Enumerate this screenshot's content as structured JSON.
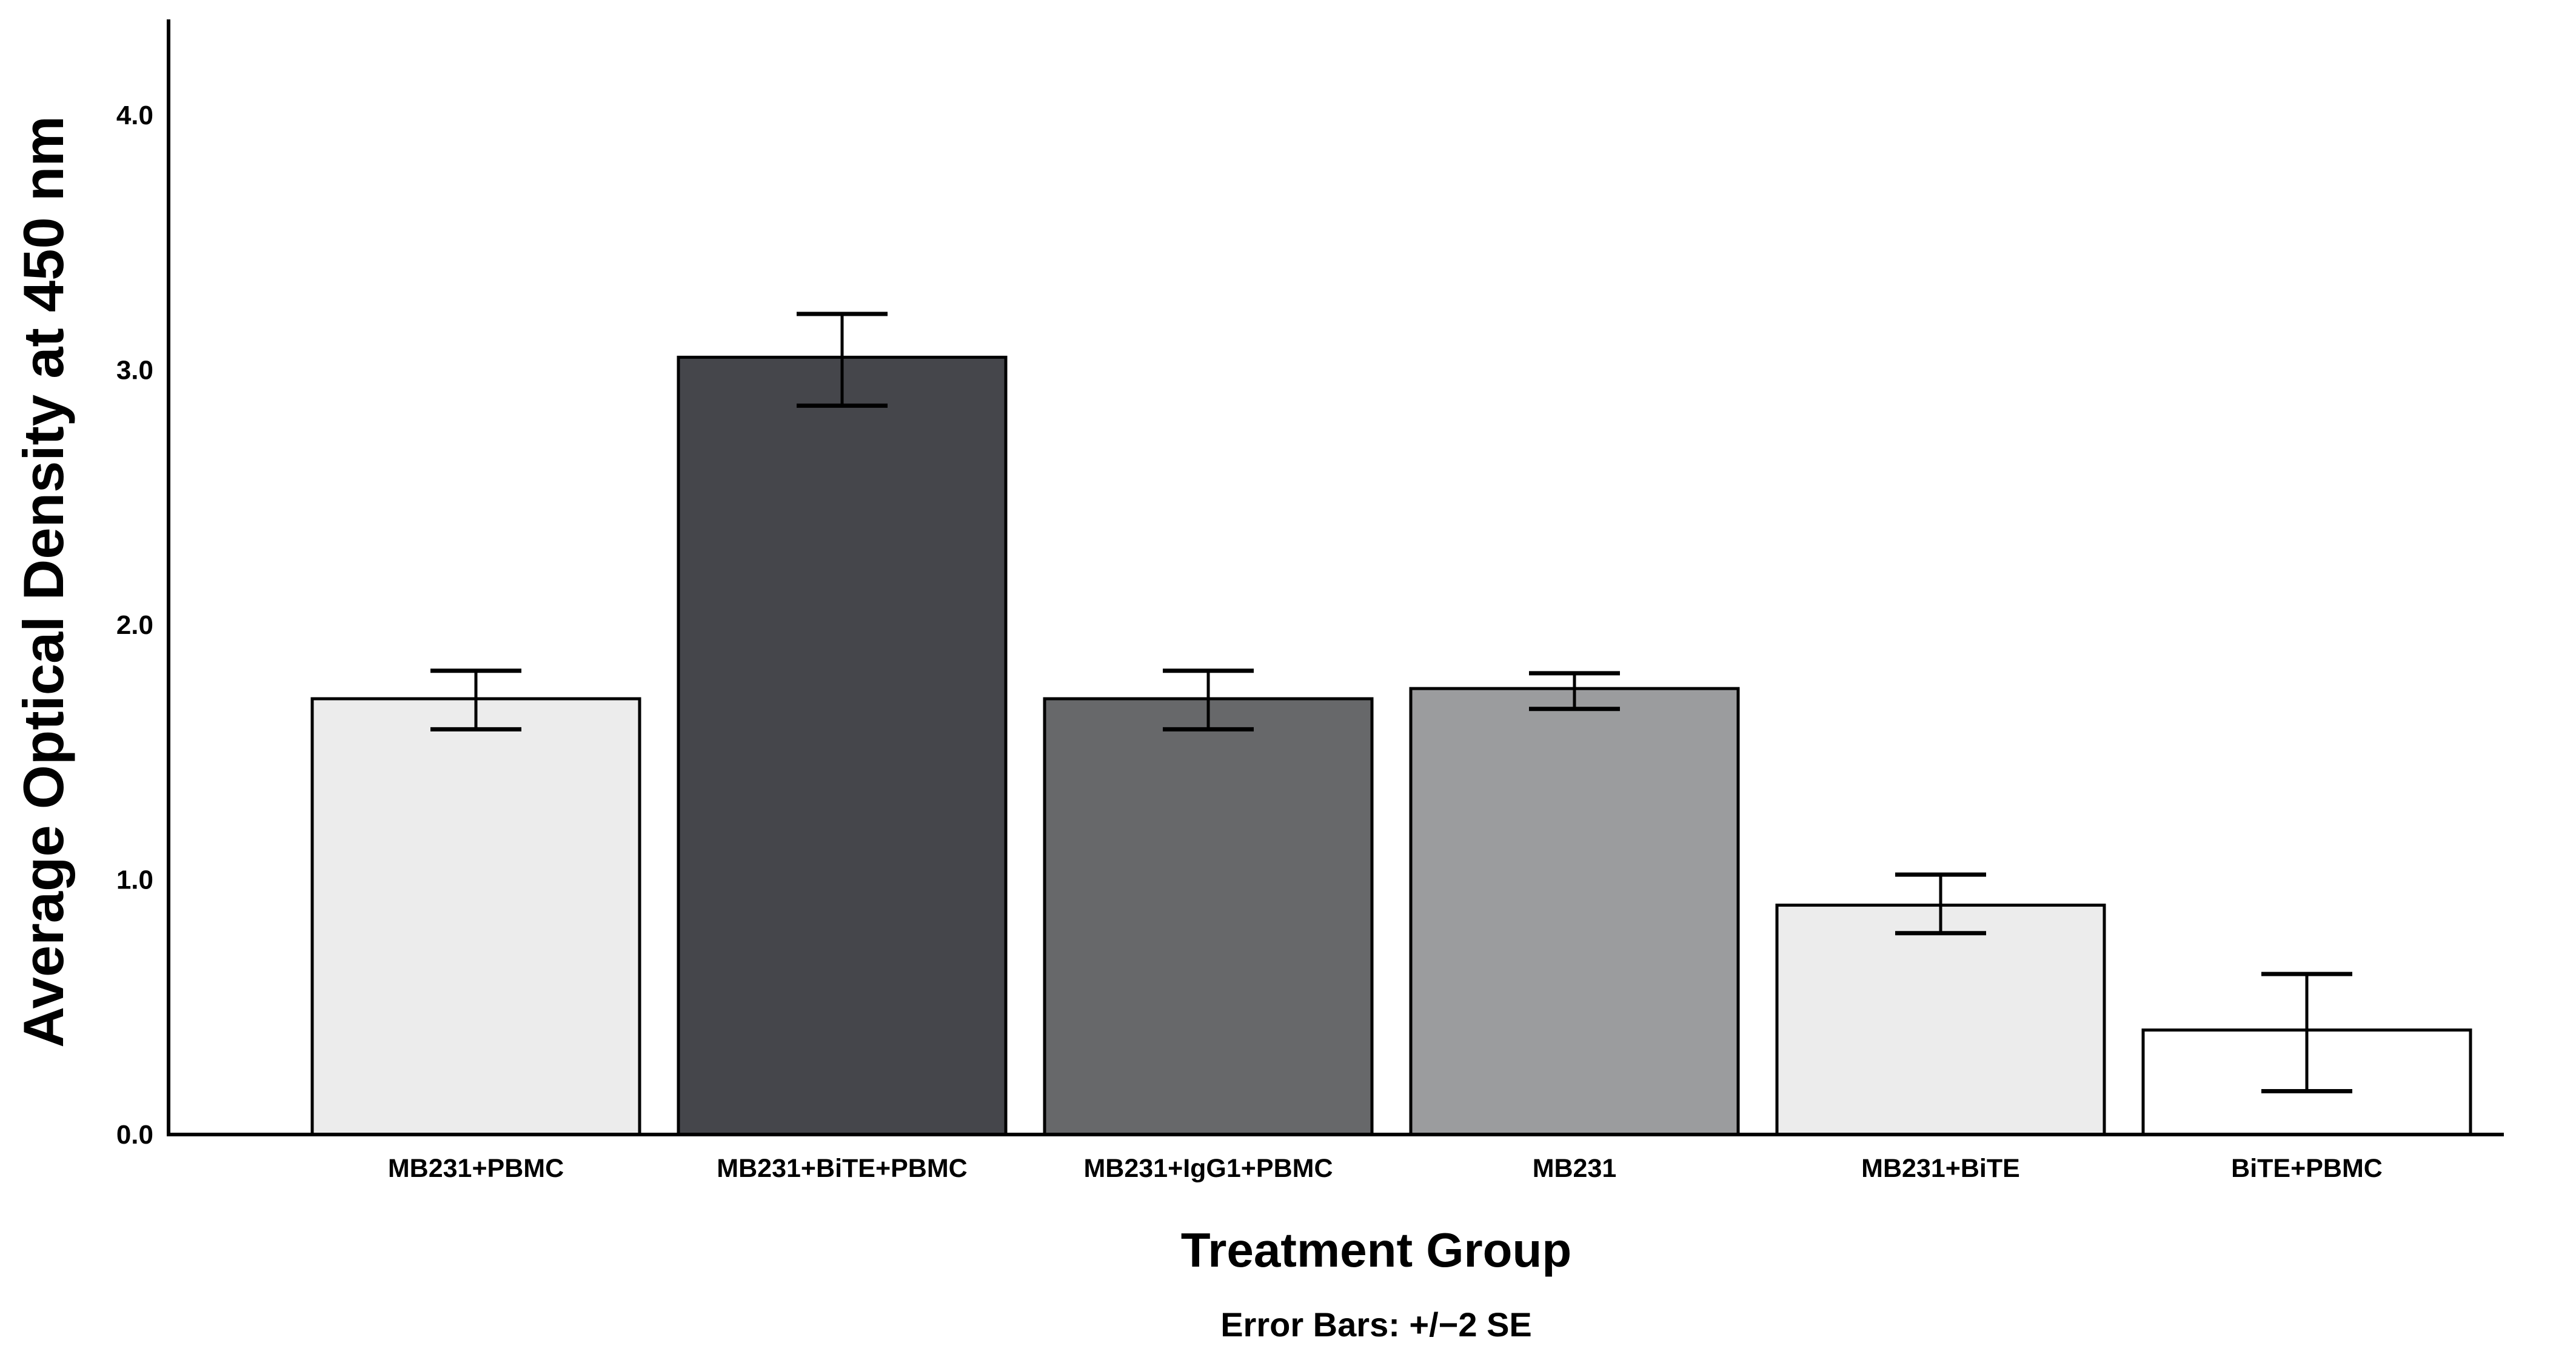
{
  "figure": {
    "background": "#FFFFFF"
  },
  "chart_data": {
    "type": "bar",
    "title": "",
    "xlabel": "Treatment Group",
    "ylabel": "Average Optical Density at 450 nm",
    "footnote": "Error Bars: +/−2 SE",
    "categories": [
      "MB231+PBMC",
      "MB231+BiTE+PBMC",
      "MB231+IgG1+PBMC",
      "MB231",
      "MB231+BiTE",
      "BiTE+PBMC"
    ],
    "values": [
      1.71,
      3.05,
      1.71,
      1.75,
      0.9,
      0.41
    ],
    "error_low": [
      1.59,
      2.86,
      1.59,
      1.67,
      0.79,
      0.17
    ],
    "error_high": [
      1.82,
      3.22,
      1.82,
      1.81,
      1.02,
      0.63
    ],
    "error_bar_definition": "+/-2 SE",
    "bar_colors": [
      "#ECECEC",
      "#45464B",
      "#67686A",
      "#9B9C9E",
      "#ECECEC",
      "#FFFFFF"
    ],
    "bar_border_color": "#000000",
    "error_bar_color": "#000000",
    "axis_color": "#000000",
    "text_color": "#000000",
    "ylim": [
      0,
      4.38
    ],
    "yticks": {
      "values": [
        0,
        1,
        2,
        3,
        4
      ],
      "labels": [
        "0.0",
        "1.0",
        "2.0",
        "3.0",
        "4.0"
      ]
    },
    "grid": false,
    "legend": "none"
  }
}
